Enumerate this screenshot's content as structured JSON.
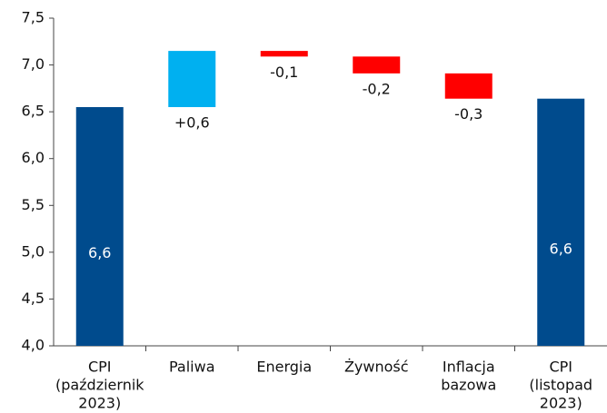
{
  "chart_data": {
    "type": "waterfall",
    "categories": [
      [
        "CPI",
        "(październik",
        "2023)"
      ],
      [
        "Paliwa"
      ],
      [
        "Energia"
      ],
      [
        "Żywność"
      ],
      [
        "Inflacja",
        "bazowa"
      ],
      [
        "CPI",
        "(listopad",
        "2023)"
      ]
    ],
    "values": [
      6.55,
      0.6,
      -0.06,
      -0.18,
      -0.27,
      6.64
    ],
    "value_labels": [
      "6,6",
      "+0,6",
      "-0,1",
      "-0,2",
      "-0,3",
      "6,6"
    ],
    "kinds": [
      "total",
      "step",
      "step",
      "step",
      "step",
      "total"
    ],
    "colors": {
      "total": "#004b8d",
      "increase": "#00b0f0",
      "decrease": "#ff0000"
    },
    "ylim": [
      4.0,
      7.5
    ],
    "yticks": [
      {
        "value": 4.0,
        "label": "4,0"
      },
      {
        "value": 4.5,
        "label": "4,5"
      },
      {
        "value": 5.0,
        "label": "5,0"
      },
      {
        "value": 5.5,
        "label": "5,5"
      },
      {
        "value": 6.0,
        "label": "6,0"
      },
      {
        "value": 6.5,
        "label": "6,5"
      },
      {
        "value": 7.0,
        "label": "7,0"
      },
      {
        "value": 7.5,
        "label": "7,5"
      }
    ]
  }
}
